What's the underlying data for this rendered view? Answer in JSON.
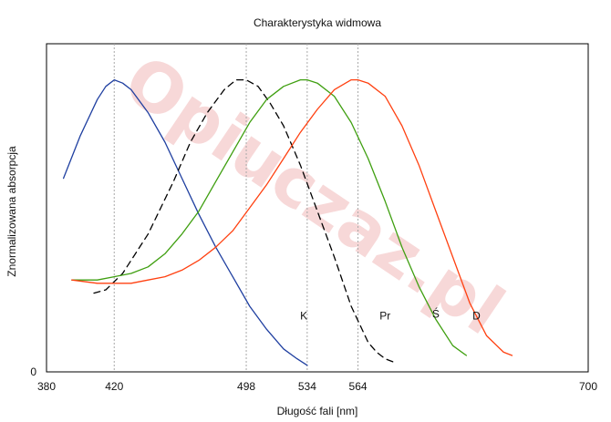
{
  "chart_data": {
    "type": "line",
    "title": "Charakterystyka widmowa",
    "xlabel": "Długość fali [nm]",
    "ylabel": "Znormalizowana absorpcja",
    "xlim": [
      380,
      700
    ],
    "ylim": [
      0,
      1
    ],
    "x_ticks": [
      380,
      420,
      498,
      534,
      564,
      700
    ],
    "y_ticks": [
      0
    ],
    "grid": "vertical dotted at 420, 498, 534, 564",
    "watermark": "Opiuczaz.pl",
    "series": [
      {
        "name": "K",
        "color": "#1f3fa0",
        "dash": "solid",
        "x": [
          390,
          400,
          410,
          415,
          420,
          425,
          430,
          440,
          450,
          460,
          470,
          480,
          490,
          500,
          510,
          520,
          528,
          534
        ],
        "y": [
          0.59,
          0.72,
          0.83,
          0.87,
          0.89,
          0.88,
          0.86,
          0.79,
          0.7,
          0.59,
          0.48,
          0.38,
          0.29,
          0.2,
          0.13,
          0.07,
          0.04,
          0.02
        ]
      },
      {
        "name": "",
        "color": "#000000",
        "dash": "dashed",
        "x": [
          408,
          415,
          425,
          440,
          455,
          465,
          475,
          485,
          492,
          498,
          505,
          512,
          520,
          530,
          540,
          550,
          560,
          570,
          575,
          580,
          585
        ],
        "y": [
          0.24,
          0.25,
          0.3,
          0.42,
          0.58,
          0.7,
          0.79,
          0.86,
          0.89,
          0.89,
          0.87,
          0.82,
          0.75,
          0.63,
          0.49,
          0.35,
          0.2,
          0.09,
          0.06,
          0.04,
          0.03
        ]
      },
      {
        "name": "Ś",
        "color": "#3f9f10",
        "dash": "solid",
        "x": [
          395,
          410,
          420,
          430,
          440,
          450,
          460,
          470,
          480,
          490,
          500,
          510,
          520,
          530,
          534,
          540,
          550,
          560,
          570,
          580,
          590,
          600,
          610,
          620,
          628
        ],
        "y": [
          0.28,
          0.28,
          0.29,
          0.3,
          0.32,
          0.36,
          0.42,
          0.49,
          0.58,
          0.67,
          0.76,
          0.83,
          0.87,
          0.89,
          0.89,
          0.88,
          0.84,
          0.76,
          0.65,
          0.52,
          0.38,
          0.26,
          0.16,
          0.08,
          0.05
        ]
      },
      {
        "name": "D",
        "color": "#ff4010",
        "dash": "solid",
        "x": [
          395,
          410,
          420,
          430,
          440,
          450,
          460,
          470,
          480,
          490,
          500,
          510,
          520,
          530,
          540,
          550,
          560,
          564,
          570,
          580,
          590,
          600,
          610,
          620,
          630,
          640,
          650,
          655
        ],
        "y": [
          0.28,
          0.27,
          0.27,
          0.27,
          0.28,
          0.29,
          0.31,
          0.34,
          0.38,
          0.43,
          0.5,
          0.57,
          0.65,
          0.73,
          0.8,
          0.86,
          0.89,
          0.89,
          0.88,
          0.84,
          0.75,
          0.63,
          0.49,
          0.35,
          0.21,
          0.11,
          0.06,
          0.05
        ]
      }
    ],
    "curve_labels": [
      {
        "text": "K",
        "x": 532,
        "y": 0.16
      },
      {
        "text": "Pr",
        "x": 580,
        "y": 0.16
      },
      {
        "text": "Ś",
        "x": 610,
        "y": 0.165
      },
      {
        "text": "D",
        "x": 634,
        "y": 0.16
      }
    ]
  }
}
